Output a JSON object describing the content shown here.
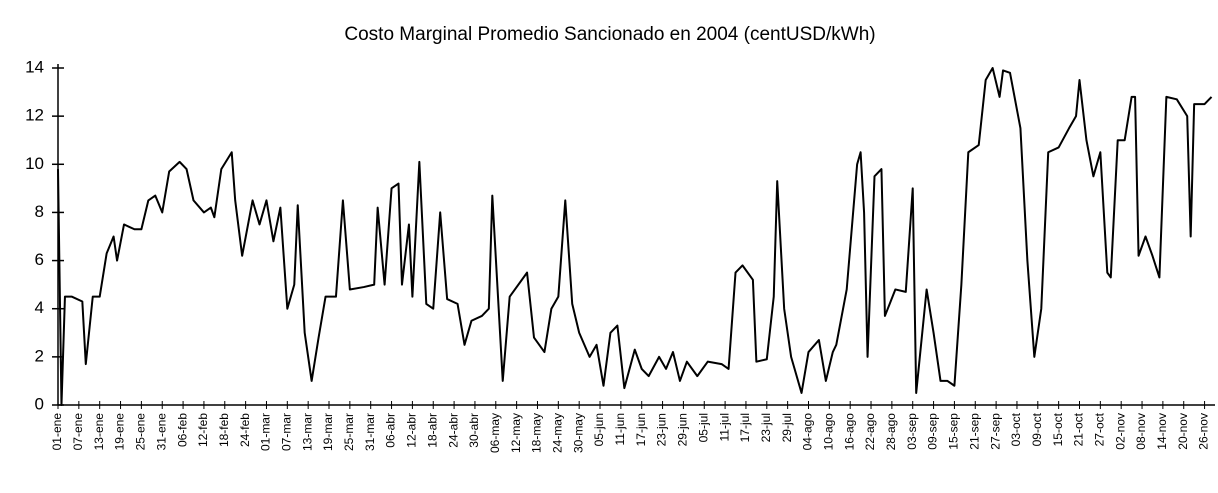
{
  "chart_data": {
    "type": "line",
    "title": "Costo Marginal Promedio Sancionado en 2004 (centUSD/kWh)",
    "xlim": [
      0,
      333
    ],
    "ylim": [
      0,
      14
    ],
    "yticks": [
      0,
      2,
      4,
      6,
      8,
      10,
      12,
      14
    ],
    "xticks": [
      {
        "value": 0,
        "label": "01-ene"
      },
      {
        "value": 6,
        "label": "07-ene"
      },
      {
        "value": 12,
        "label": "13-ene"
      },
      {
        "value": 18,
        "label": "19-ene"
      },
      {
        "value": 24,
        "label": "25-ene"
      },
      {
        "value": 30,
        "label": "31-ene"
      },
      {
        "value": 36,
        "label": "06-feb"
      },
      {
        "value": 42,
        "label": "12-feb"
      },
      {
        "value": 48,
        "label": "18-feb"
      },
      {
        "value": 54,
        "label": "24-feb"
      },
      {
        "value": 60,
        "label": "01-mar"
      },
      {
        "value": 66,
        "label": "07-mar"
      },
      {
        "value": 72,
        "label": "13-mar"
      },
      {
        "value": 78,
        "label": "19-mar"
      },
      {
        "value": 84,
        "label": "25-mar"
      },
      {
        "value": 90,
        "label": "31-mar"
      },
      {
        "value": 96,
        "label": "06-abr"
      },
      {
        "value": 102,
        "label": "12-abr"
      },
      {
        "value": 108,
        "label": "18-abr"
      },
      {
        "value": 114,
        "label": "24-abr"
      },
      {
        "value": 120,
        "label": "30-abr"
      },
      {
        "value": 126,
        "label": "06-may"
      },
      {
        "value": 132,
        "label": "12-may"
      },
      {
        "value": 138,
        "label": "18-may"
      },
      {
        "value": 144,
        "label": "24-may"
      },
      {
        "value": 150,
        "label": "30-may"
      },
      {
        "value": 156,
        "label": "05-jun"
      },
      {
        "value": 162,
        "label": "11-jun"
      },
      {
        "value": 168,
        "label": "17-jun"
      },
      {
        "value": 174,
        "label": "23-jun"
      },
      {
        "value": 180,
        "label": "29-jun"
      },
      {
        "value": 186,
        "label": "05-jul"
      },
      {
        "value": 192,
        "label": "11-jul"
      },
      {
        "value": 198,
        "label": "17-jul"
      },
      {
        "value": 204,
        "label": "23-jul"
      },
      {
        "value": 210,
        "label": "29-jul"
      },
      {
        "value": 216,
        "label": "04-ago"
      },
      {
        "value": 222,
        "label": "10-ago"
      },
      {
        "value": 228,
        "label": "16-ago"
      },
      {
        "value": 234,
        "label": "22-ago"
      },
      {
        "value": 240,
        "label": "28-ago"
      },
      {
        "value": 246,
        "label": "03-sep"
      },
      {
        "value": 252,
        "label": "09-sep"
      },
      {
        "value": 258,
        "label": "15-sep"
      },
      {
        "value": 264,
        "label": "21-sep"
      },
      {
        "value": 270,
        "label": "27-sep"
      },
      {
        "value": 276,
        "label": "03-oct"
      },
      {
        "value": 282,
        "label": "09-oct"
      },
      {
        "value": 288,
        "label": "15-oct"
      },
      {
        "value": 294,
        "label": "21-oct"
      },
      {
        "value": 300,
        "label": "27-oct"
      },
      {
        "value": 306,
        "label": "02-nov"
      },
      {
        "value": 312,
        "label": "08-nov"
      },
      {
        "value": 318,
        "label": "14-nov"
      },
      {
        "value": 324,
        "label": "20-nov"
      },
      {
        "value": 330,
        "label": "26-nov"
      }
    ],
    "color": "#000000",
    "x": [
      0,
      1,
      2,
      4,
      7,
      8,
      10,
      12,
      14,
      16,
      17,
      19,
      22,
      24,
      26,
      28,
      30,
      32,
      35,
      37,
      39,
      42,
      44,
      45,
      47,
      50,
      51,
      53,
      56,
      58,
      60,
      62,
      64,
      66,
      68,
      69,
      71,
      73,
      75,
      77,
      80,
      82,
      84,
      88,
      91,
      92,
      94,
      96,
      98,
      99,
      101,
      102,
      104,
      106,
      108,
      110,
      112,
      115,
      117,
      119,
      122,
      124,
      125,
      128,
      130,
      135,
      137,
      140,
      142,
      144,
      146,
      148,
      150,
      153,
      155,
      157,
      159,
      161,
      163,
      166,
      168,
      170,
      173,
      175,
      177,
      179,
      181,
      184,
      187,
      191,
      193,
      195,
      197,
      200,
      201,
      204,
      206,
      207,
      209,
      211,
      212,
      214,
      216,
      219,
      221,
      223,
      224,
      227,
      230,
      231,
      232,
      233,
      235,
      237,
      238,
      241,
      244,
      246,
      247,
      250,
      252,
      254,
      256,
      258,
      260,
      262,
      265,
      267,
      269,
      271,
      272,
      274,
      277,
      279,
      281,
      283,
      285,
      288,
      291,
      293,
      294,
      296,
      298,
      300,
      302,
      303,
      305,
      307,
      309,
      310,
      311,
      313,
      315,
      317,
      319,
      322,
      325,
      326,
      327,
      330,
      332
    ],
    "values": [
      9.8,
      0,
      4.5,
      4.5,
      4.3,
      1.7,
      4.5,
      4.5,
      6.3,
      7,
      6,
      7.5,
      7.3,
      7.3,
      8.5,
      8.7,
      8,
      9.7,
      10.1,
      9.8,
      8.5,
      8,
      8.2,
      7.8,
      9.8,
      10.5,
      8.5,
      6.2,
      8.5,
      7.5,
      8.5,
      6.8,
      8.2,
      4,
      5,
      8.3,
      3,
      1,
      2.8,
      4.5,
      4.5,
      8.5,
      4.8,
      4.9,
      5,
      8.2,
      5,
      9,
      9.2,
      5,
      7.5,
      4.5,
      10.1,
      4.2,
      4,
      8,
      4.4,
      4.2,
      2.5,
      3.5,
      3.7,
      4,
      8.7,
      1,
      4.5,
      5.5,
      2.8,
      2.2,
      4,
      4.5,
      8.5,
      4.2,
      3,
      2,
      2.5,
      0.8,
      3,
      3.3,
      0.7,
      2.3,
      1.5,
      1.2,
      2,
      1.5,
      2.2,
      1,
      1.8,
      1.2,
      1.8,
      1.7,
      1.5,
      5.5,
      5.8,
      5.2,
      1.8,
      1.9,
      4.5,
      9.3,
      4,
      2,
      1.5,
      0.5,
      2.2,
      2.7,
      1,
      2.2,
      2.5,
      4.8,
      10,
      10.5,
      8,
      2,
      9.5,
      9.8,
      3.7,
      4.8,
      4.7,
      9,
      0.5,
      4.8,
      3,
      1,
      1,
      0.8,
      5,
      10.5,
      10.8,
      13.5,
      14,
      12.8,
      13.9,
      13.8,
      11.5,
      6,
      2,
      4,
      10.5,
      10.7,
      11.5,
      12,
      13.5,
      11,
      9.5,
      10.5,
      5.5,
      5.3,
      11,
      11,
      12.8,
      12.8,
      6.2,
      7,
      6.2,
      5.3,
      12.8,
      12.7,
      12,
      7,
      12.5,
      12.5,
      12.8
    ]
  }
}
